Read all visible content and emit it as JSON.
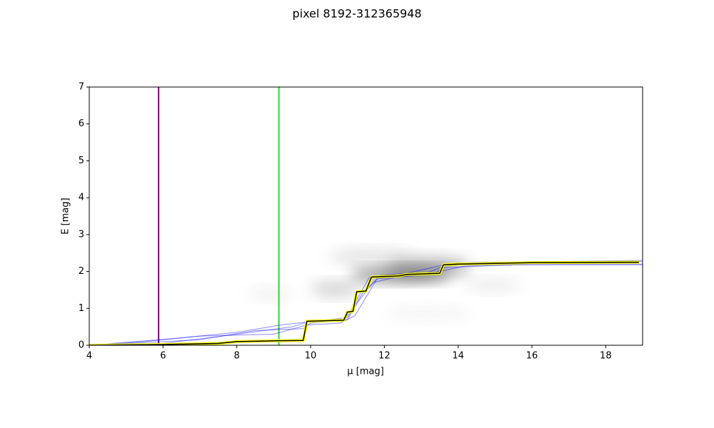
{
  "chart_data": {
    "type": "line",
    "title": "pixel 8192-312365948",
    "xlabel": "μ [mag]",
    "ylabel": "E [mag]",
    "xlim": [
      4,
      19
    ],
    "ylim": [
      0,
      7
    ],
    "xticks": [
      4,
      6,
      8,
      10,
      12,
      14,
      16,
      18
    ],
    "yticks": [
      0,
      1,
      2,
      3,
      4,
      5,
      6,
      7
    ],
    "vlines": [
      {
        "x": 5.88,
        "color": "purple"
      },
      {
        "x": 9.14,
        "color": "#22dd22"
      }
    ],
    "series": [
      {
        "color": "blue",
        "x": [
          4,
          6,
          8,
          9.5,
          9.9,
          10.9,
          11.1,
          11.4,
          11.6,
          12.5,
          13.5,
          14.2,
          16,
          19
        ],
        "values": [
          0,
          0.05,
          0.3,
          0.5,
          0.62,
          0.65,
          0.95,
          1.5,
          1.85,
          1.9,
          2.0,
          2.15,
          2.2,
          2.2
        ]
      },
      {
        "color": "blue",
        "x": [
          4,
          7,
          8.5,
          9.8,
          10,
          11,
          11.3,
          11.7,
          12.3,
          13.4,
          13.6,
          15,
          19
        ],
        "values": [
          0,
          0.15,
          0.4,
          0.45,
          0.6,
          0.7,
          1.2,
          1.7,
          1.85,
          1.95,
          2.15,
          2.25,
          2.3
        ]
      },
      {
        "color": "blue",
        "x": [
          4,
          5.5,
          7,
          9,
          9.9,
          10.8,
          11.2,
          11.5,
          11.8,
          13,
          13.5,
          15.5,
          19
        ],
        "values": [
          0,
          0.1,
          0.25,
          0.3,
          0.55,
          0.6,
          0.8,
          1.3,
          1.8,
          1.9,
          2.1,
          2.18,
          2.18
        ]
      },
      {
        "color": "blue",
        "x": [
          4,
          6.5,
          8,
          9.2,
          10.1,
          11,
          11.4,
          11.9,
          12.6,
          13.7,
          14.5,
          19
        ],
        "values": [
          0,
          0.2,
          0.35,
          0.55,
          0.65,
          0.75,
          1.4,
          1.9,
          1.95,
          2.2,
          2.25,
          2.27
        ]
      },
      {
        "color": "black",
        "outline": "yellow",
        "x": [
          4,
          6,
          7.5,
          8,
          9,
          9.8,
          9.9,
          10.9,
          11.0,
          11.15,
          11.25,
          11.5,
          11.65,
          12.4,
          12.6,
          13.5,
          13.6,
          14,
          15,
          16,
          18.9
        ],
        "values": [
          0,
          0.02,
          0.05,
          0.1,
          0.12,
          0.13,
          0.65,
          0.68,
          0.9,
          0.92,
          1.45,
          1.47,
          1.85,
          1.88,
          1.92,
          1.95,
          2.18,
          2.2,
          2.22,
          2.24,
          2.25
        ]
      }
    ]
  }
}
